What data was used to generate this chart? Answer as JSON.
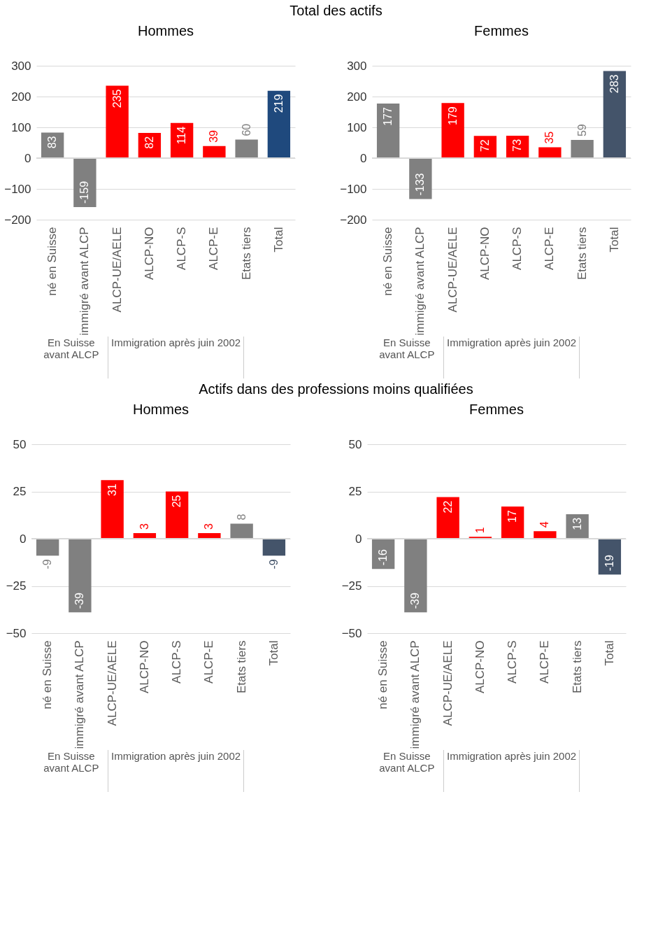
{
  "chart_data": [
    {
      "type": "bar",
      "title": "Hommes",
      "annotations": [
        "Total des actifs",
        "En Suisse avant ALCP",
        "Immigration après juin 2002"
      ],
      "categories": [
        "né en Suisse",
        "immigré avant ALCP",
        "ALCP-UE/AELE",
        "ALCP-NO",
        "ALCP-S",
        "ALCP-E",
        "Etats tiers",
        "Total"
      ],
      "values": [
        83,
        -159,
        235,
        82,
        114,
        39,
        60,
        219
      ],
      "colors": [
        "#808080",
        "#808080",
        "#ff0000",
        "#ff0000",
        "#ff0000",
        "#ff0000",
        "#808080",
        "#1f497d"
      ],
      "ylim": [
        -200,
        300
      ],
      "yticks": [
        -200,
        -100,
        0,
        100,
        200,
        300
      ],
      "grid": "y",
      "data_labels": true
    },
    {
      "type": "bar",
      "title": "Femmes",
      "annotations": [
        "En Suisse avant ALCP",
        "Immigration après juin 2002"
      ],
      "categories": [
        "né en Suisse",
        "immigré avant ALCP",
        "ALCP-UE/AELE",
        "ALCP-NO",
        "ALCP-S",
        "ALCP-E",
        "Etats tiers",
        "Total"
      ],
      "values": [
        177,
        -133,
        179,
        72,
        73,
        35,
        59,
        283
      ],
      "colors": [
        "#808080",
        "#808080",
        "#ff0000",
        "#ff0000",
        "#ff0000",
        "#ff0000",
        "#808080",
        "#44546a"
      ],
      "ylim": [
        -200,
        300
      ],
      "yticks": [
        -200,
        -100,
        0,
        100,
        200,
        300
      ],
      "grid": "y",
      "data_labels": true
    },
    {
      "type": "bar",
      "title": "Hommes",
      "annotations": [
        "Actifs dans des professions moins qualifiées",
        "En Suisse avant ALCP",
        "Immigration après juin 2002"
      ],
      "categories": [
        "né en Suisse",
        "immigré avant ALCP",
        "ALCP-UE/AELE",
        "ALCP-NO",
        "ALCP-S",
        "ALCP-E",
        "Etats tiers",
        "Total"
      ],
      "values": [
        -9,
        -39,
        31,
        3,
        25,
        3,
        8,
        -9
      ],
      "colors": [
        "#808080",
        "#808080",
        "#ff0000",
        "#ff0000",
        "#ff0000",
        "#ff0000",
        "#808080",
        "#44546a"
      ],
      "ylim": [
        -50,
        50
      ],
      "yticks": [
        -50,
        -25,
        0,
        25,
        50
      ],
      "grid": "y",
      "data_labels": true
    },
    {
      "type": "bar",
      "title": "Femmes",
      "annotations": [
        "En Suisse avant ALCP",
        "Immigration après juin 2002"
      ],
      "categories": [
        "né en Suisse",
        "immigré avant ALCP",
        "ALCP-UE/AELE",
        "ALCP-NO",
        "ALCP-S",
        "ALCP-E",
        "Etats tiers",
        "Total"
      ],
      "values": [
        -16,
        -39,
        22,
        1,
        17,
        4,
        13,
        -19
      ],
      "colors": [
        "#808080",
        "#808080",
        "#ff0000",
        "#ff0000",
        "#ff0000",
        "#ff0000",
        "#808080",
        "#44546a"
      ],
      "ylim": [
        -50,
        50
      ],
      "yticks": [
        -50,
        -25,
        0,
        25,
        50
      ],
      "grid": "y",
      "data_labels": true
    }
  ]
}
